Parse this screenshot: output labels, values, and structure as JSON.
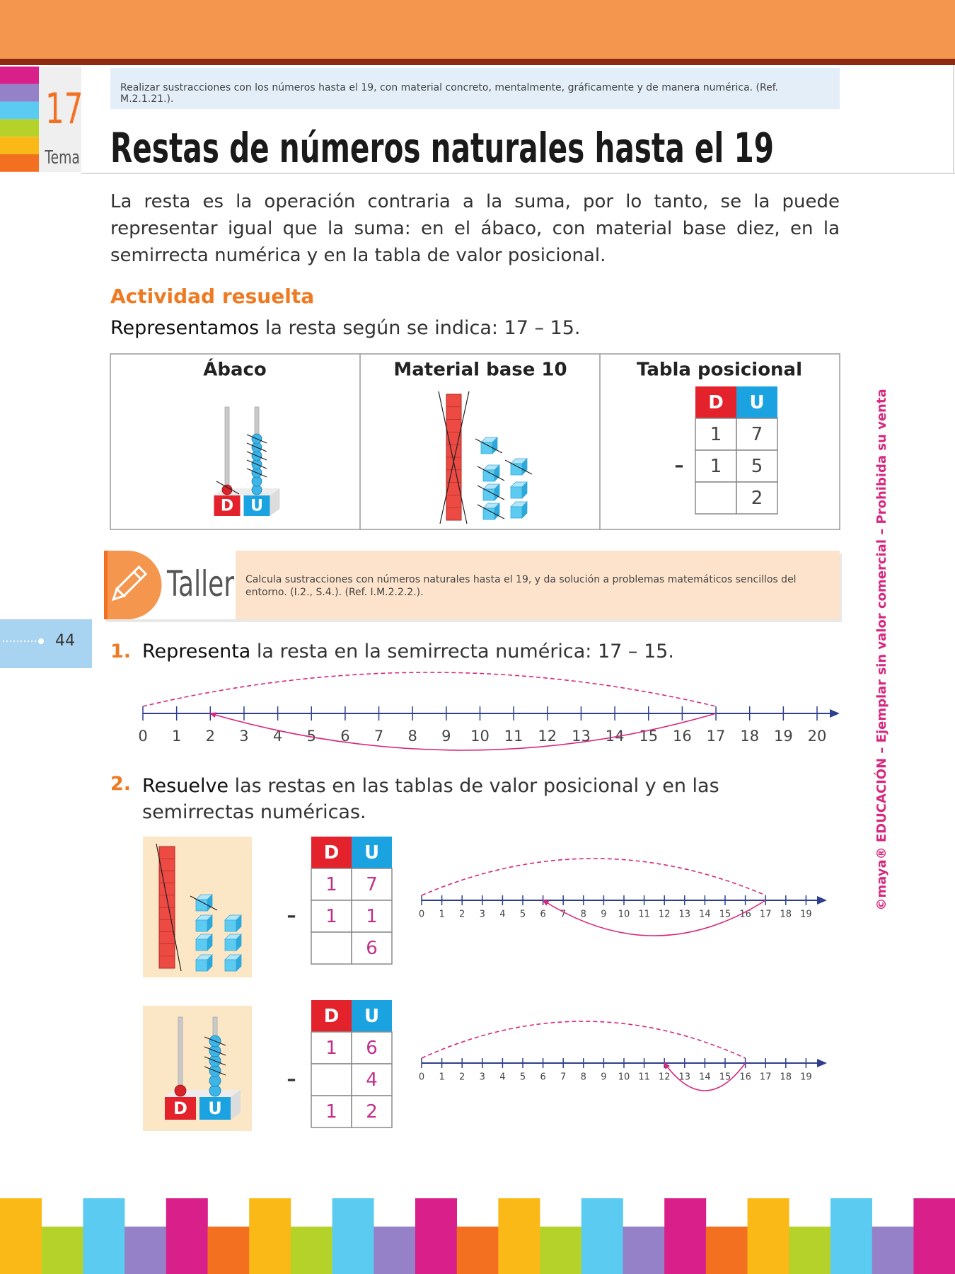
{
  "header": {
    "objective": "Realizar sustracciones con los números hasta el 19, con material concreto, mentalmente, gráficamente y de manera numérica. (Ref. M.2.1.21.).",
    "tema_number": "17",
    "tema_label": "Tema",
    "title": "Restas de números naturales hasta el 19"
  },
  "intro": "La resta es la operación contraria a la suma, por lo tanto, se la puede representar igual que la suma: en el ábaco, con material base diez, en la semirrecta numérica y en la tabla de valor posicional.",
  "activity": {
    "heading": "Actividad resuelta",
    "instruction": {
      "bold": "Representamos",
      "text": " la resta según se indica: 17 – 15."
    },
    "columns": [
      "Ábaco",
      "Material base 10",
      "Tabla posicional"
    ],
    "abacus": {
      "tens": "D",
      "units": "U"
    },
    "place_table": {
      "headers": [
        "D",
        "U"
      ],
      "operator": "–",
      "rows": [
        {
          "D": "1",
          "U": "7"
        },
        {
          "D": "1",
          "U": "5"
        },
        {
          "U": "2"
        }
      ]
    }
  },
  "taller": {
    "label": "Taller",
    "text": "Calcula sustracciones con números naturales hasta el 19, y da solución a problemas matemáticos sencillos del entorno. (I.2., S.4.). (Ref. I.M.2.2.2.)."
  },
  "page_number": "44",
  "exercises": [
    {
      "number": "1.",
      "bold": "Representa",
      "text": " la resta en la semirrecta numérica: 17 – 15.",
      "number_line": {
        "ticks": [
          0,
          1,
          2,
          3,
          4,
          5,
          6,
          7,
          8,
          9,
          10,
          11,
          12,
          13,
          14,
          15,
          16,
          17,
          18,
          19,
          20
        ],
        "jumps": [
          {
            "from": 0,
            "to": 17
          },
          {
            "from": 17,
            "to": 2
          }
        ]
      }
    },
    {
      "number": "2.",
      "bold": "Resuelve",
      "text": " las restas en las tablas de valor posicional y en las semirrectas numéricas.",
      "items": [
        {
          "place_table": {
            "headers": [
              "D",
              "U"
            ],
            "operator": "–",
            "rows": [
              {
                "D": "1",
                "U": "7"
              },
              {
                "D": "1",
                "U": "1"
              },
              {
                "U": "6"
              }
            ]
          },
          "number_line": {
            "ticks": [
              0,
              1,
              2,
              3,
              4,
              5,
              6,
              7,
              8,
              9,
              10,
              11,
              12,
              13,
              14,
              15,
              16,
              17,
              18,
              19
            ],
            "jumps": [
              {
                "from": 0,
                "to": 17
              },
              {
                "from": 17,
                "to": 6
              }
            ]
          }
        },
        {
          "abacus": {
            "tens": "D",
            "units": "U"
          },
          "place_table": {
            "headers": [
              "D",
              "U"
            ],
            "operator": "–",
            "rows": [
              {
                "D": "1",
                "U": "6"
              },
              {
                "U": "4"
              },
              {
                "D": "1",
                "U": "2"
              }
            ]
          },
          "number_line": {
            "ticks": [
              0,
              1,
              2,
              3,
              4,
              5,
              6,
              7,
              8,
              9,
              10,
              11,
              12,
              13,
              14,
              15,
              16,
              17,
              18,
              19
            ],
            "jumps": [
              {
                "from": 0,
                "to": 16
              },
              {
                "from": 16,
                "to": 12
              }
            ]
          }
        }
      ]
    }
  ],
  "side_note": "©maya® EDUCACIÓN – Ejemplar sin valor comercial – Prohibida su venta"
}
